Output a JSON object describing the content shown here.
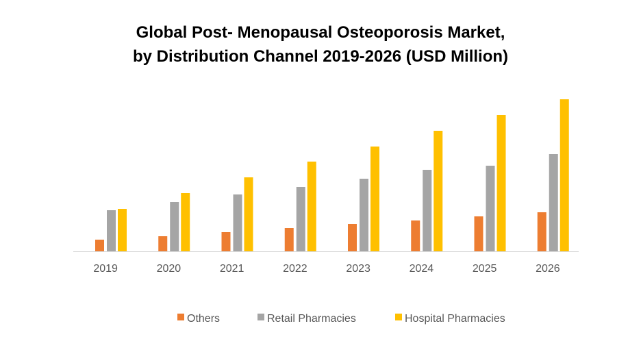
{
  "chart_data": {
    "type": "bar",
    "title": [
      "Global Post- Menopausal Osteoporosis Market,",
      "by Distribution Channel 2019-2026 (USD Million)"
    ],
    "xlabel": "",
    "ylabel": "",
    "categories": [
      "2019",
      "2020",
      "2021",
      "2022",
      "2023",
      "2024",
      "2025",
      "2026"
    ],
    "ylim": [
      0,
      230
    ],
    "grid": false,
    "legend_position": "bottom",
    "series": [
      {
        "name": "Others",
        "color": "#ED7D31",
        "values": [
          17,
          22,
          28,
          34,
          40,
          45,
          51,
          57
        ]
      },
      {
        "name": "Retail Pharmacies",
        "color": "#A5A5A5",
        "values": [
          60,
          72,
          83,
          94,
          106,
          119,
          125,
          142
        ]
      },
      {
        "name": "Hospital Pharmacies",
        "color": "#FFC000",
        "values": [
          62,
          85,
          108,
          131,
          153,
          176,
          199,
          222
        ]
      }
    ]
  }
}
